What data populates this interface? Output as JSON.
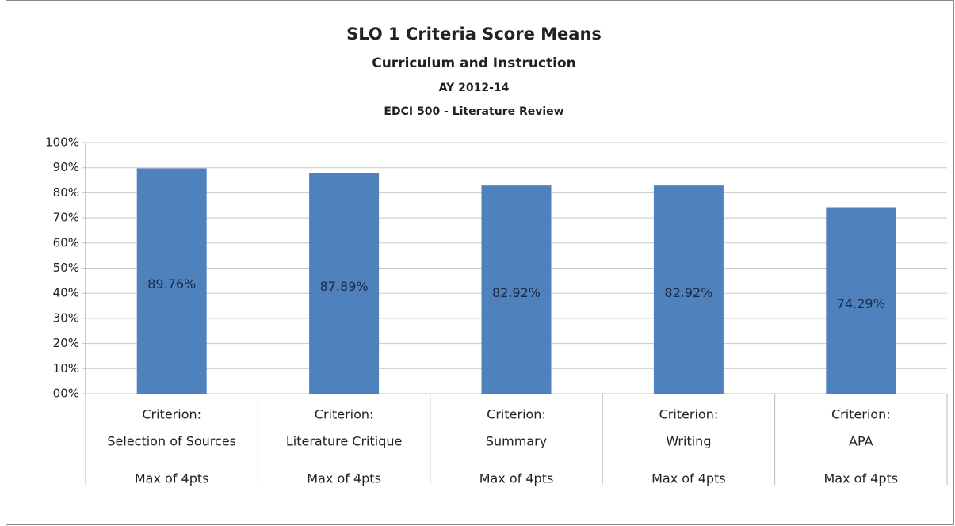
{
  "chart_data": {
    "type": "bar",
    "title": "SLO 1 Criteria Score Means",
    "subtitle": "Curriculum and Instruction",
    "subtitle2": "AY 2012-14",
    "subtitle3": "EDCI 500 - Literature Review",
    "categories": [
      [
        "Criterion:",
        "Selection of Sources"
      ],
      [
        "Criterion:",
        "Literature Critique"
      ],
      [
        "Criterion:",
        "Summary"
      ],
      [
        "Criterion:",
        "Writing"
      ],
      [
        "Criterion:",
        "APA"
      ]
    ],
    "category_groups": [
      "Max of 4pts",
      "Max of 4pts",
      "Max of 4pts",
      "Max of 4pts",
      "Max of 4pts"
    ],
    "values": [
      89.76,
      87.89,
      82.92,
      82.92,
      74.29
    ],
    "value_labels": [
      "89.76%",
      "87.89%",
      "82.92%",
      "82.92%",
      "74.29%"
    ],
    "color": "#4f81bd",
    "ylim": [
      0,
      100
    ],
    "yticks": [
      {
        "value": 0,
        "label": "00%"
      },
      {
        "value": 10,
        "label": "10%"
      },
      {
        "value": 20,
        "label": "20%"
      },
      {
        "value": 30,
        "label": "30%"
      },
      {
        "value": 40,
        "label": "40%"
      },
      {
        "value": 50,
        "label": "50%"
      },
      {
        "value": 60,
        "label": "60%"
      },
      {
        "value": 70,
        "label": "70%"
      },
      {
        "value": 80,
        "label": "80%"
      },
      {
        "value": 90,
        "label": "90%"
      },
      {
        "value": 100,
        "label": "100%"
      }
    ],
    "grid": true
  }
}
